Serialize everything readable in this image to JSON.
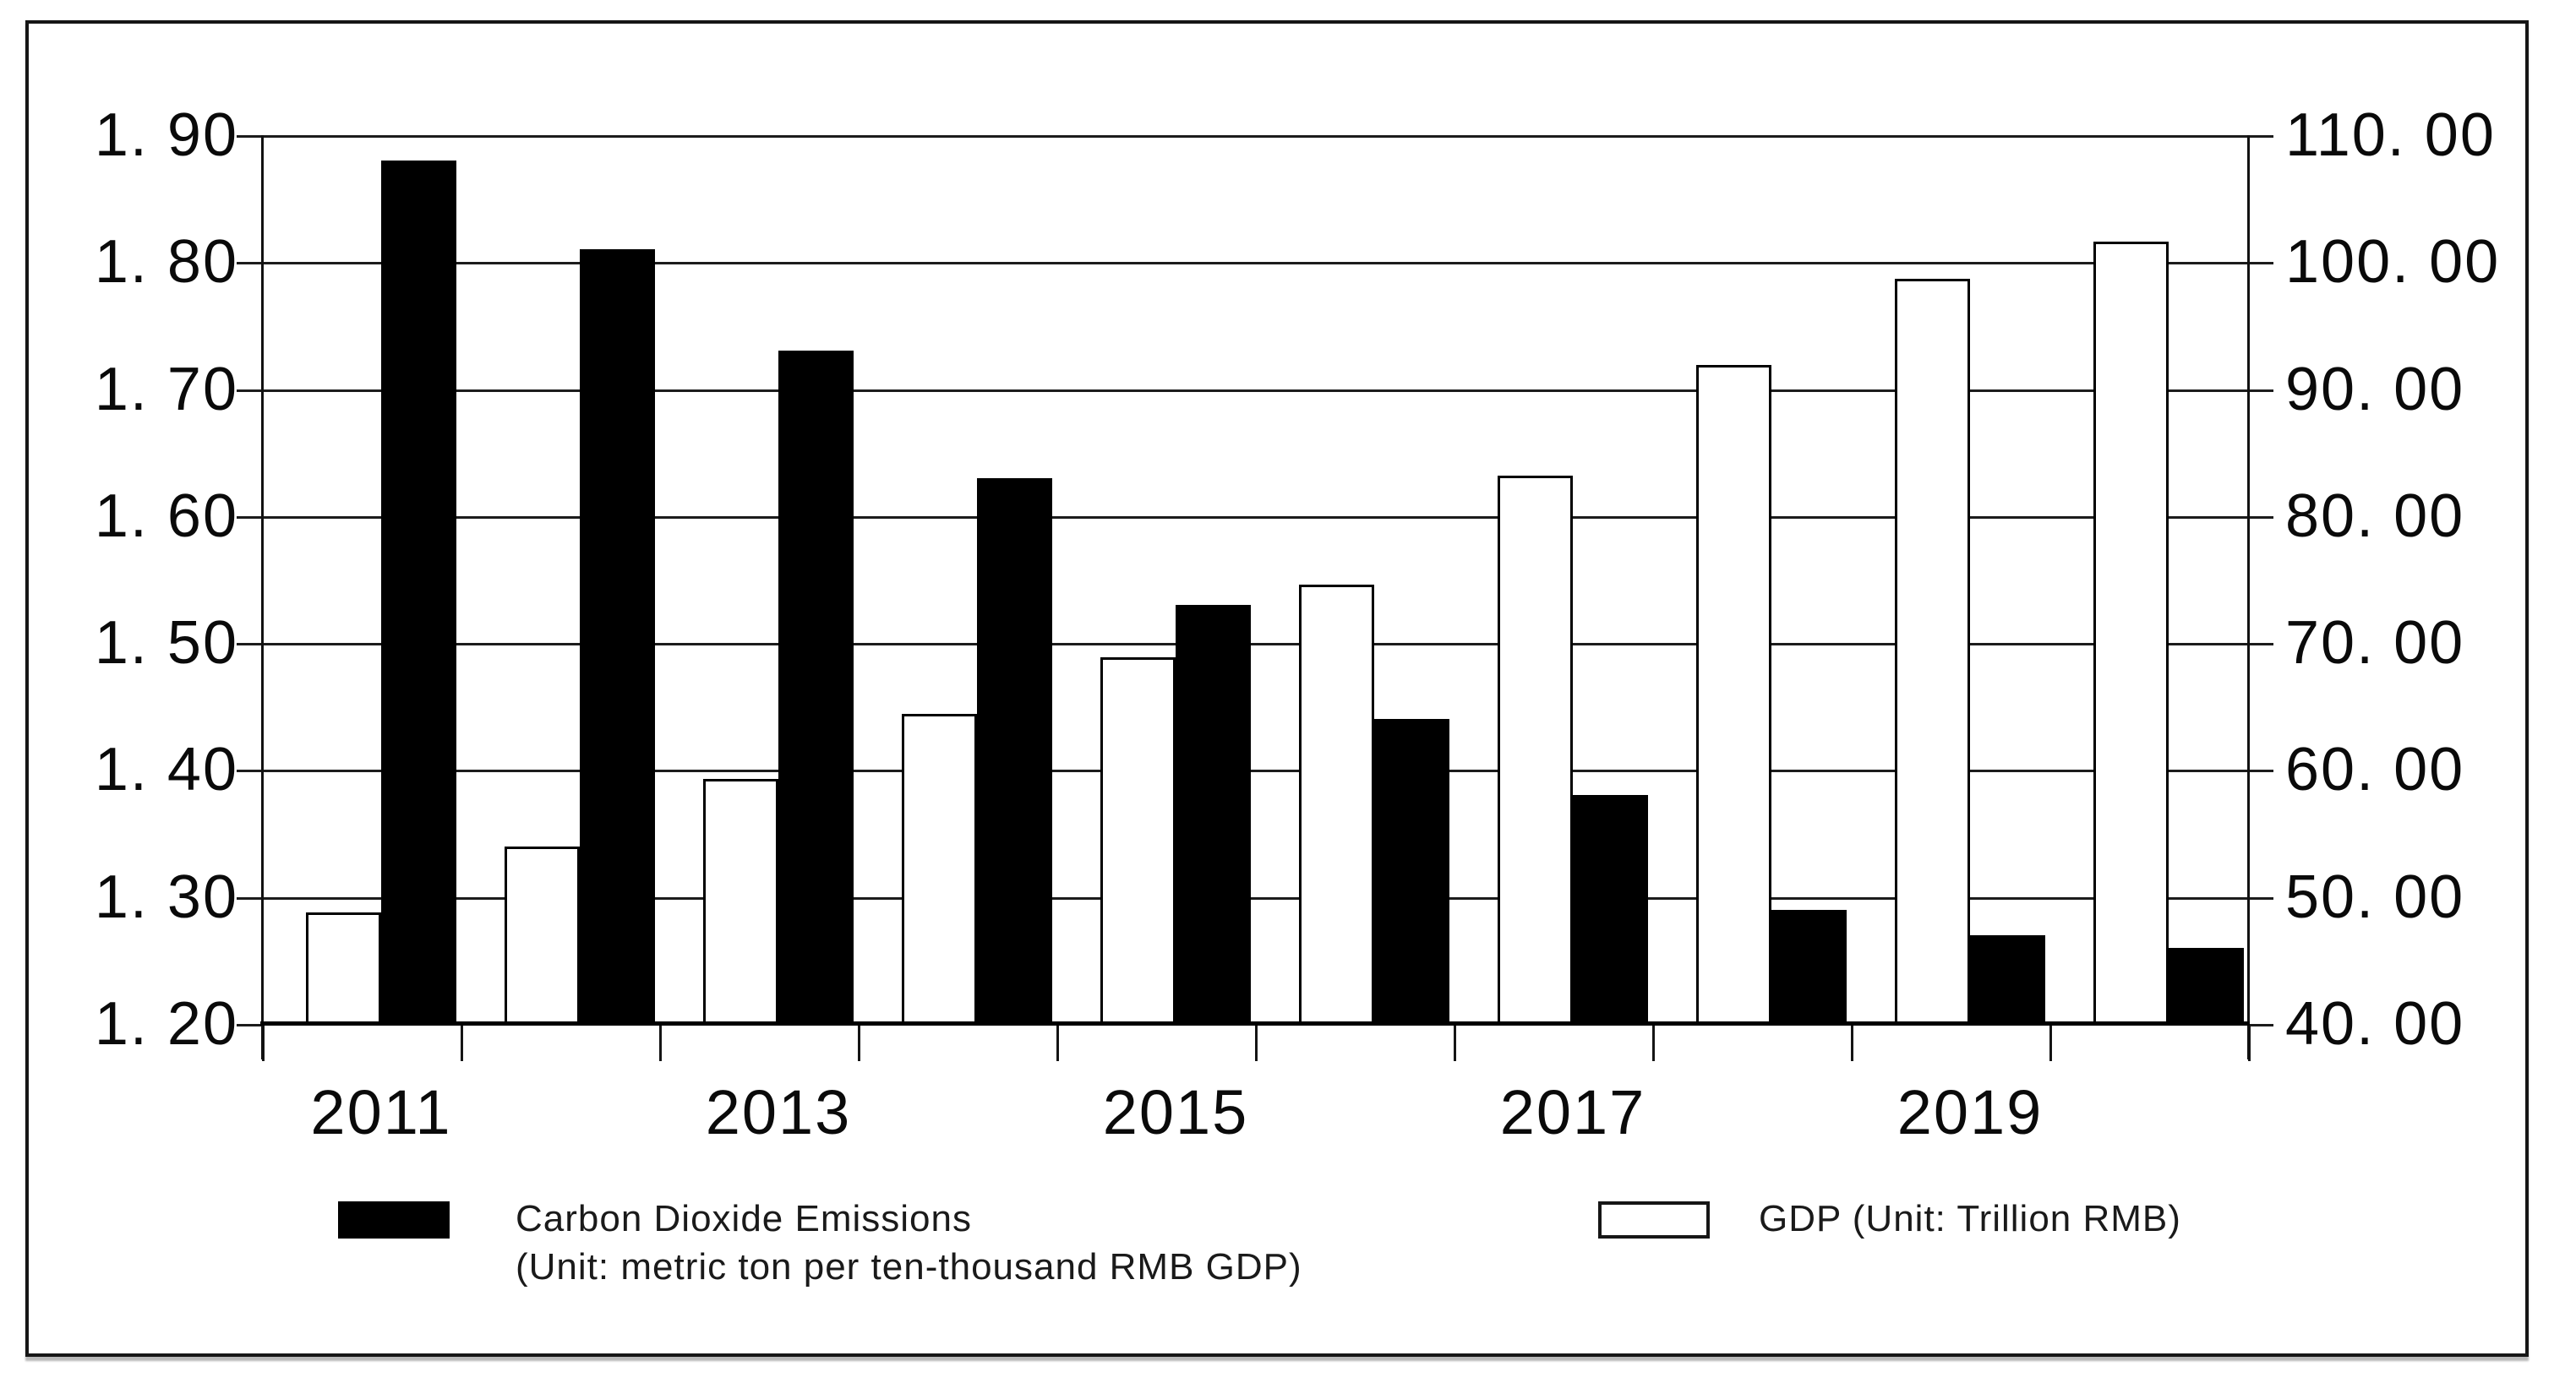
{
  "chart_data": {
    "type": "bar",
    "title": "",
    "categories": [
      "2011",
      "2012",
      "2013",
      "2014",
      "2015",
      "2016",
      "2017",
      "2018",
      "2019",
      "2020"
    ],
    "x_axis": {
      "shown_tick_labels": [
        "2011",
        "2013",
        "2015",
        "2017",
        "2019"
      ],
      "shown_at_category_index": [
        0,
        2,
        4,
        6,
        8
      ]
    },
    "series": [
      {
        "name": "Carbon Dioxide Emissions (Unit: metric ton per ten-thousand RMB GDP)",
        "axis": "left",
        "color": "#000000",
        "values": [
          1.88,
          1.81,
          1.73,
          1.63,
          1.53,
          1.44,
          1.38,
          1.29,
          1.27,
          1.26
        ]
      },
      {
        "name": "GDP (Unit: Trillion RMB)",
        "axis": "right",
        "color": "#ffffff",
        "values": [
          48.8,
          54.0,
          59.3,
          64.4,
          68.9,
          74.6,
          83.2,
          91.9,
          98.7,
          101.6
        ]
      }
    ],
    "left_axis": {
      "min": 1.2,
      "max": 1.9,
      "step": 0.1,
      "tick_labels": [
        "1. 90",
        "1. 80",
        "1. 70",
        "1. 60",
        "1. 50",
        "1. 40",
        "1. 30",
        "1. 20"
      ]
    },
    "right_axis": {
      "min": 40.0,
      "max": 110.0,
      "step": 10.0,
      "tick_labels": [
        "110. 00",
        "100. 00",
        "90. 00",
        "80. 00",
        "70. 00",
        "60. 00",
        "50. 00",
        "40. 00"
      ]
    },
    "legend": {
      "position": "bottom",
      "co2_line1": "Carbon Dioxide Emissions",
      "co2_line2": "(Unit: metric ton per ten-thousand RMB GDP)",
      "gdp_line1": "GDP (Unit: Trillion RMB)"
    },
    "layout": {
      "grid": "horizontal",
      "bar_group_order": [
        "gdp",
        "co2"
      ],
      "gridline_color": "#1c1c1c",
      "background": "#ffffff"
    }
  }
}
